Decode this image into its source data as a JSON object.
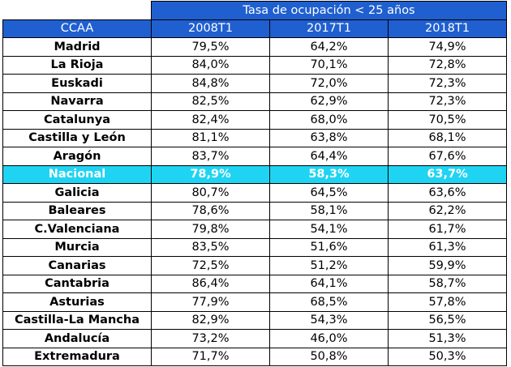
{
  "chart_data": {
    "type": "table",
    "title": "Tasa de ocupación < 25 años",
    "columns": [
      "CCAA",
      "2008T1",
      "2017T1",
      "2018T1"
    ],
    "highlight_row": "Nacional",
    "rows": [
      [
        "Madrid",
        "79,5%",
        "64,2%",
        "74,9%"
      ],
      [
        "La Rioja",
        "84,0%",
        "70,1%",
        "72,8%"
      ],
      [
        "Euskadi",
        "84,8%",
        "72,0%",
        "72,3%"
      ],
      [
        "Navarra",
        "82,5%",
        "62,9%",
        "72,3%"
      ],
      [
        "Catalunya",
        "82,4%",
        "68,0%",
        "70,5%"
      ],
      [
        "Castilla y León",
        "81,1%",
        "63,8%",
        "68,1%"
      ],
      [
        "Aragón",
        "83,7%",
        "64,4%",
        "67,6%"
      ],
      [
        "Nacional",
        "78,9%",
        "58,3%",
        "63,7%"
      ],
      [
        "Galicia",
        "80,7%",
        "64,5%",
        "63,6%"
      ],
      [
        "Baleares",
        "78,6%",
        "58,1%",
        "62,2%"
      ],
      [
        "C.Valenciana",
        "79,8%",
        "54,1%",
        "61,7%"
      ],
      [
        "Murcia",
        "83,5%",
        "51,6%",
        "61,3%"
      ],
      [
        "Canarias",
        "72,5%",
        "51,2%",
        "59,9%"
      ],
      [
        "Cantabria",
        "86,4%",
        "64,1%",
        "58,7%"
      ],
      [
        "Asturias",
        "77,9%",
        "68,5%",
        "57,8%"
      ],
      [
        "Castilla-La Mancha",
        "82,9%",
        "54,3%",
        "56,5%"
      ],
      [
        "Andalucía",
        "73,2%",
        "46,0%",
        "51,3%"
      ],
      [
        "Extremadura",
        "71,7%",
        "50,8%",
        "50,3%"
      ]
    ],
    "colors": {
      "header_bg": "#1f5fd0",
      "header_text": "#ffffff",
      "highlight_bg": "#1fd4f3",
      "highlight_text": "#ffffff",
      "border": "#000000"
    }
  }
}
